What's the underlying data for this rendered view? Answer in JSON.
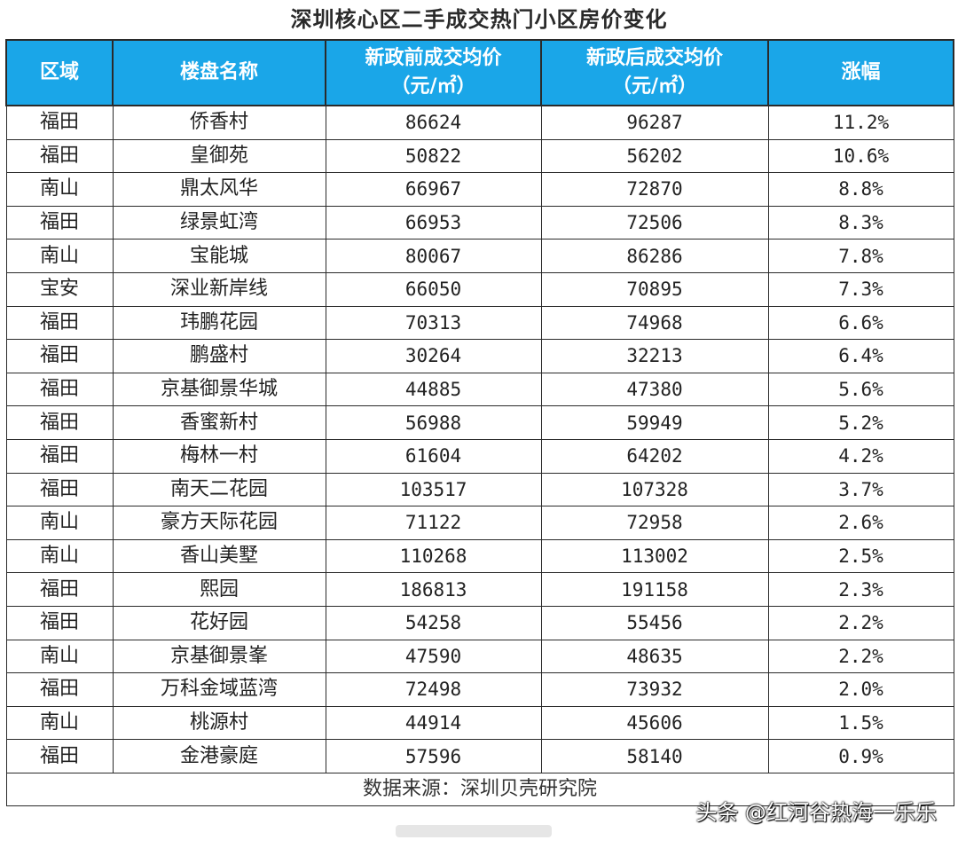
{
  "title": "深圳核心区二手成交热门小区房价变化",
  "headers": {
    "district": "区域",
    "name": "楼盘名称",
    "before_line1": "新政前成交均价",
    "before_line2": "（元/㎡）",
    "after_line1": "新政后成交均价",
    "after_line2": "（元/㎡）",
    "rise": "涨幅"
  },
  "rows": [
    {
      "district": "福田",
      "name": "侨香村",
      "before": "86624",
      "after": "96287",
      "rise": "11.2%"
    },
    {
      "district": "福田",
      "name": "皇御苑",
      "before": "50822",
      "after": "56202",
      "rise": "10.6%"
    },
    {
      "district": "南山",
      "name": "鼎太风华",
      "before": "66967",
      "after": "72870",
      "rise": "8.8%"
    },
    {
      "district": "福田",
      "name": "绿景虹湾",
      "before": "66953",
      "after": "72506",
      "rise": "8.3%"
    },
    {
      "district": "南山",
      "name": "宝能城",
      "before": "80067",
      "after": "86286",
      "rise": "7.8%"
    },
    {
      "district": "宝安",
      "name": "深业新岸线",
      "before": "66050",
      "after": "70895",
      "rise": "7.3%"
    },
    {
      "district": "福田",
      "name": "玮鹏花园",
      "before": "70313",
      "after": "74968",
      "rise": "6.6%"
    },
    {
      "district": "福田",
      "name": "鹏盛村",
      "before": "30264",
      "after": "32213",
      "rise": "6.4%"
    },
    {
      "district": "福田",
      "name": "京基御景华城",
      "before": "44885",
      "after": "47380",
      "rise": "5.6%"
    },
    {
      "district": "福田",
      "name": "香蜜新村",
      "before": "56988",
      "after": "59949",
      "rise": "5.2%"
    },
    {
      "district": "福田",
      "name": "梅林一村",
      "before": "61604",
      "after": "64202",
      "rise": "4.2%"
    },
    {
      "district": "福田",
      "name": "南天二花园",
      "before": "103517",
      "after": "107328",
      "rise": "3.7%"
    },
    {
      "district": "南山",
      "name": "豪方天际花园",
      "before": "71122",
      "after": "72958",
      "rise": "2.6%"
    },
    {
      "district": "南山",
      "name": "香山美墅",
      "before": "110268",
      "after": "113002",
      "rise": "2.5%"
    },
    {
      "district": "福田",
      "name": "熙园",
      "before": "186813",
      "after": "191158",
      "rise": "2.3%"
    },
    {
      "district": "福田",
      "name": "花好园",
      "before": "54258",
      "after": "55456",
      "rise": "2.2%"
    },
    {
      "district": "南山",
      "name": "京基御景峯",
      "before": "47590",
      "after": "48635",
      "rise": "2.2%"
    },
    {
      "district": "福田",
      "name": "万科金域蓝湾",
      "before": "72498",
      "after": "73932",
      "rise": "2.0%"
    },
    {
      "district": "南山",
      "name": "桃源村",
      "before": "44914",
      "after": "45606",
      "rise": "1.5%"
    },
    {
      "district": "福田",
      "name": "金港豪庭",
      "before": "57596",
      "after": "58140",
      "rise": "0.9%"
    }
  ],
  "source": "数据来源：深圳贝壳研究院",
  "watermark": "头条 @红河谷热海一乐乐",
  "colors": {
    "header_bg": "#1aa6e8",
    "header_text": "#ffffff",
    "border": "#2a2a2a"
  }
}
